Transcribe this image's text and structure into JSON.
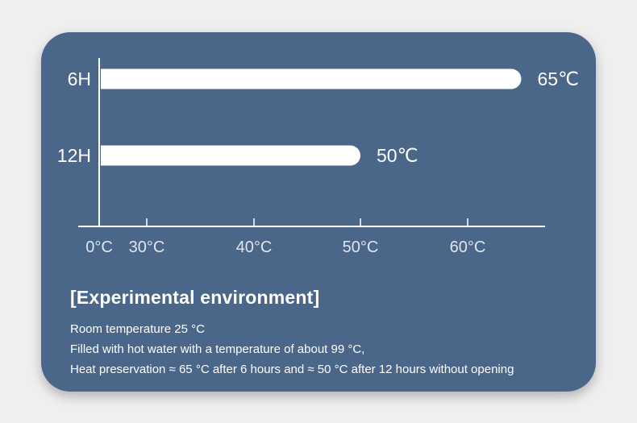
{
  "colors": {
    "page_background": "#efefef",
    "card_background": "#4a6689",
    "bar": "#ffffff",
    "text": "#ffffff",
    "axis": "#ffffff",
    "tick_text": "#dfe6ee"
  },
  "chart_data": {
    "type": "bar",
    "orientation": "horizontal",
    "categories": [
      "6H",
      "12H"
    ],
    "values": [
      65,
      50
    ],
    "value_labels": [
      "65℃",
      "50℃"
    ],
    "x_ticks": [
      {
        "value": 0,
        "label": "0°C"
      },
      {
        "value": 30,
        "label": "30°C"
      },
      {
        "value": 40,
        "label": "40°C"
      },
      {
        "value": 50,
        "label": "50°C"
      },
      {
        "value": 60,
        "label": "60°C"
      }
    ],
    "title": "",
    "xlabel": "",
    "ylabel": "",
    "grid": false,
    "legend": "none"
  },
  "environment": {
    "title": "[Experimental environment]",
    "lines": [
      "Room temperature 25 °C",
      "Filled with hot water with a temperature of about 99 °C,",
      "Heat preservation ≈ 65 °C after 6 hours and ≈ 50 °C after 12 hours without opening"
    ]
  }
}
